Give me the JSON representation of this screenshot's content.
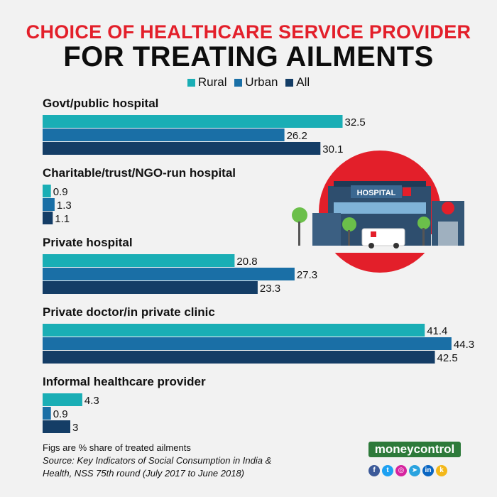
{
  "title_line1": "CHOICE OF HEALTHCARE SERVICE PROVIDER",
  "title_line2": "FOR TREATING AILMENTS",
  "colors": {
    "rural": "#1aaeb5",
    "urban": "#1a6fa6",
    "all": "#143d66",
    "title_red": "#e31f2a"
  },
  "chart_data": {
    "type": "bar",
    "orientation": "horizontal",
    "title": "CHOICE OF HEALTHCARE SERVICE PROVIDER FOR TREATING AILMENTS",
    "categories": [
      "Govt/public hospital",
      "Charitable/trust/NGO-run hospital",
      "Private hospital",
      "Private doctor/in private clinic",
      "Informal healthcare provider"
    ],
    "series": [
      {
        "name": "Rural",
        "values": [
          32.5,
          0.9,
          20.8,
          41.4,
          4.3
        ]
      },
      {
        "name": "Urban",
        "values": [
          26.2,
          1.3,
          27.3,
          44.3,
          0.9
        ]
      },
      {
        "name": "All",
        "values": [
          30.1,
          1.1,
          23.3,
          42.5,
          3
        ]
      }
    ],
    "value_labels": [
      [
        "32.5",
        "0.9",
        "20.8",
        "41.4",
        "4.3"
      ],
      [
        "26.2",
        "1.3",
        "27.3",
        "44.3",
        "0.9"
      ],
      [
        "30.1",
        "1.1",
        "23.3",
        "42.5",
        "3"
      ]
    ],
    "xlim": [
      0,
      45
    ],
    "legend_position": "top-center",
    "grid": false,
    "unit": "% share of treated ailments"
  },
  "illustration": {
    "sign_text": "HOSPITAL"
  },
  "footnote": {
    "figs": "Figs are % share of treated ailments",
    "source_line1": "Source: Key Indicators of Social Consumption in India &",
    "source_line2": "Health, NSS 75th round (July 2017 to June 2018)"
  },
  "brand": {
    "logo": "moneycontrol"
  },
  "social_icons": [
    "facebook-icon",
    "twitter-icon",
    "instagram-icon",
    "telegram-icon",
    "linkedin-icon",
    "koo-icon"
  ]
}
